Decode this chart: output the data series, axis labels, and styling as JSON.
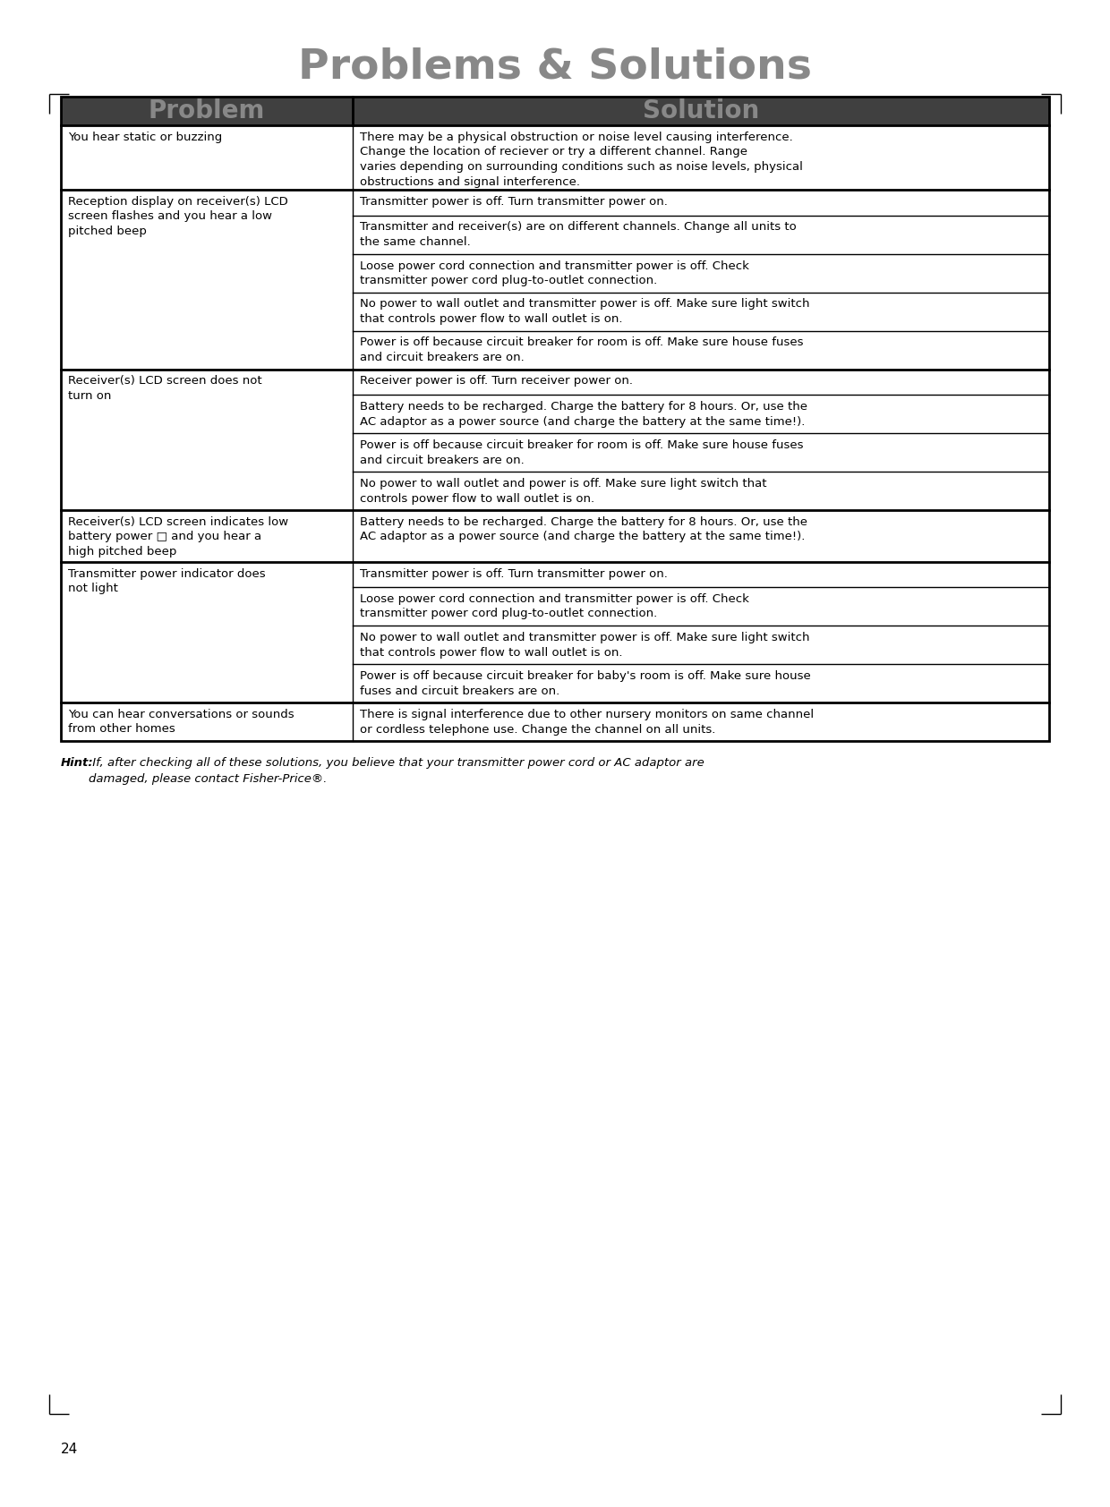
{
  "title": "Problems & Solutions",
  "title_color": "#888888",
  "title_fontsize": 34,
  "header_bg": "#404040",
  "header_text_color": "#888888",
  "header_fontsize": 20,
  "cell_fontsize": 9.5,
  "cell_text_color": "#000000",
  "border_color": "#000000",
  "bg_color": "#ffffff",
  "col_split": 0.295,
  "rows": [
    {
      "problem": "You hear static or buzzing",
      "solutions": [
        "There may be a physical obstruction or noise level causing interference.\nChange the location of reciever or try a different channel. Range\nvaries depending on surrounding conditions such as noise levels, physical\nobstructions and signal interference."
      ]
    },
    {
      "problem": "Reception display on receiver(s) LCD\nscreen flashes and you hear a low\npitched beep",
      "solutions": [
        "Transmitter power is off. Turn transmitter power on.",
        "Transmitter and receiver(s) are on different channels. Change all units to\nthe same channel.",
        "Loose power cord connection and transmitter power is off. Check\ntransmitter power cord plug-to-outlet connection.",
        "No power to wall outlet and transmitter power is off. Make sure light switch\nthat controls power flow to wall outlet is on.",
        "Power is off because circuit breaker for room is off. Make sure house fuses\nand circuit breakers are on."
      ]
    },
    {
      "problem": "Receiver(s) LCD screen does not\nturn on",
      "solutions": [
        "Receiver power is off. Turn receiver power on.",
        "Battery needs to be recharged. Charge the battery for 8 hours. Or, use the\nAC adaptor as a power source (and charge the battery at the same time!).",
        "Power is off because circuit breaker for room is off. Make sure house fuses\nand circuit breakers are on.",
        "No power to wall outlet and power is off. Make sure light switch that\ncontrols power flow to wall outlet is on."
      ]
    },
    {
      "problem": "Receiver(s) LCD screen indicates low\nbattery power □ and you hear a\nhigh pitched beep",
      "solutions": [
        "Battery needs to be recharged. Charge the battery for 8 hours. Or, use the\nAC adaptor as a power source (and charge the battery at the same time!)."
      ]
    },
    {
      "problem": "Transmitter power indicator does\nnot light",
      "solutions": [
        "Transmitter power is off. Turn transmitter power on.",
        "Loose power cord connection and transmitter power is off. Check\ntransmitter power cord plug-to-outlet connection.",
        "No power to wall outlet and transmitter power is off. Make sure light switch\nthat controls power flow to wall outlet is on.",
        "Power is off because circuit breaker for baby's room is off. Make sure house\nfuses and circuit breakers are on."
      ]
    },
    {
      "problem": "You can hear conversations or sounds\nfrom other homes",
      "solutions": [
        "There is signal interference due to other nursery monitors on same channel\nor cordless telephone use. Change the channel on all units."
      ]
    }
  ],
  "hint_bold": "Hint:",
  "hint_text": " If, after checking all of these solutions, you believe that your transmitter power cord or AC adaptor are\ndamaged, please contact Fisher-Price®.",
  "page_number": "24"
}
